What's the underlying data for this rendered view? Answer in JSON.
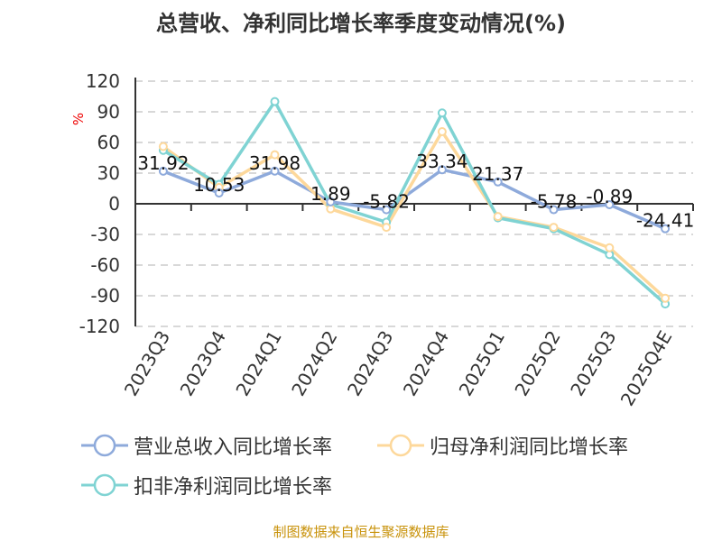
{
  "chart_data": {
    "type": "line",
    "title": "总营收、净利同比增长率季度变动情况(%)",
    "ylabel": "%",
    "ylim": [
      -120,
      120
    ],
    "yticks": [
      120,
      90,
      60,
      30,
      0,
      -30,
      -60,
      -90,
      -120
    ],
    "grid": true,
    "legend_position": "bottom",
    "categories": [
      "2023Q3",
      "2023Q4",
      "2024Q1",
      "2024Q2",
      "2024Q3",
      "2024Q4",
      "2025Q1",
      "2025Q2",
      "2025Q3",
      "2025Q4E"
    ],
    "series": [
      {
        "name": "营业总收入同比增长率",
        "color": "#8eaadb",
        "values": [
          31.92,
          10.53,
          31.98,
          1.89,
          -5.82,
          33.34,
          21.37,
          -5.78,
          -0.89,
          -24.41
        ],
        "labels": [
          "31.92",
          "10.53",
          "31.98",
          "1.89",
          "-5.82",
          "33.34",
          "21.37",
          "-5.78",
          "-0.89",
          "-24.41"
        ]
      },
      {
        "name": "归母净利润同比增长率",
        "color": "#fdd89b",
        "values": [
          56,
          16,
          48,
          -5,
          -23,
          70.6,
          -12.5,
          -23,
          -43,
          -92.4
        ]
      },
      {
        "name": "扣非净利润同比增长率",
        "color": "#7fd3d3",
        "values": [
          52.3,
          19,
          100,
          -0.5,
          -18,
          88.9,
          -13.8,
          -24.4,
          -49.7,
          -98
        ]
      }
    ]
  },
  "source": "制图数据来自恒生聚源数据库"
}
